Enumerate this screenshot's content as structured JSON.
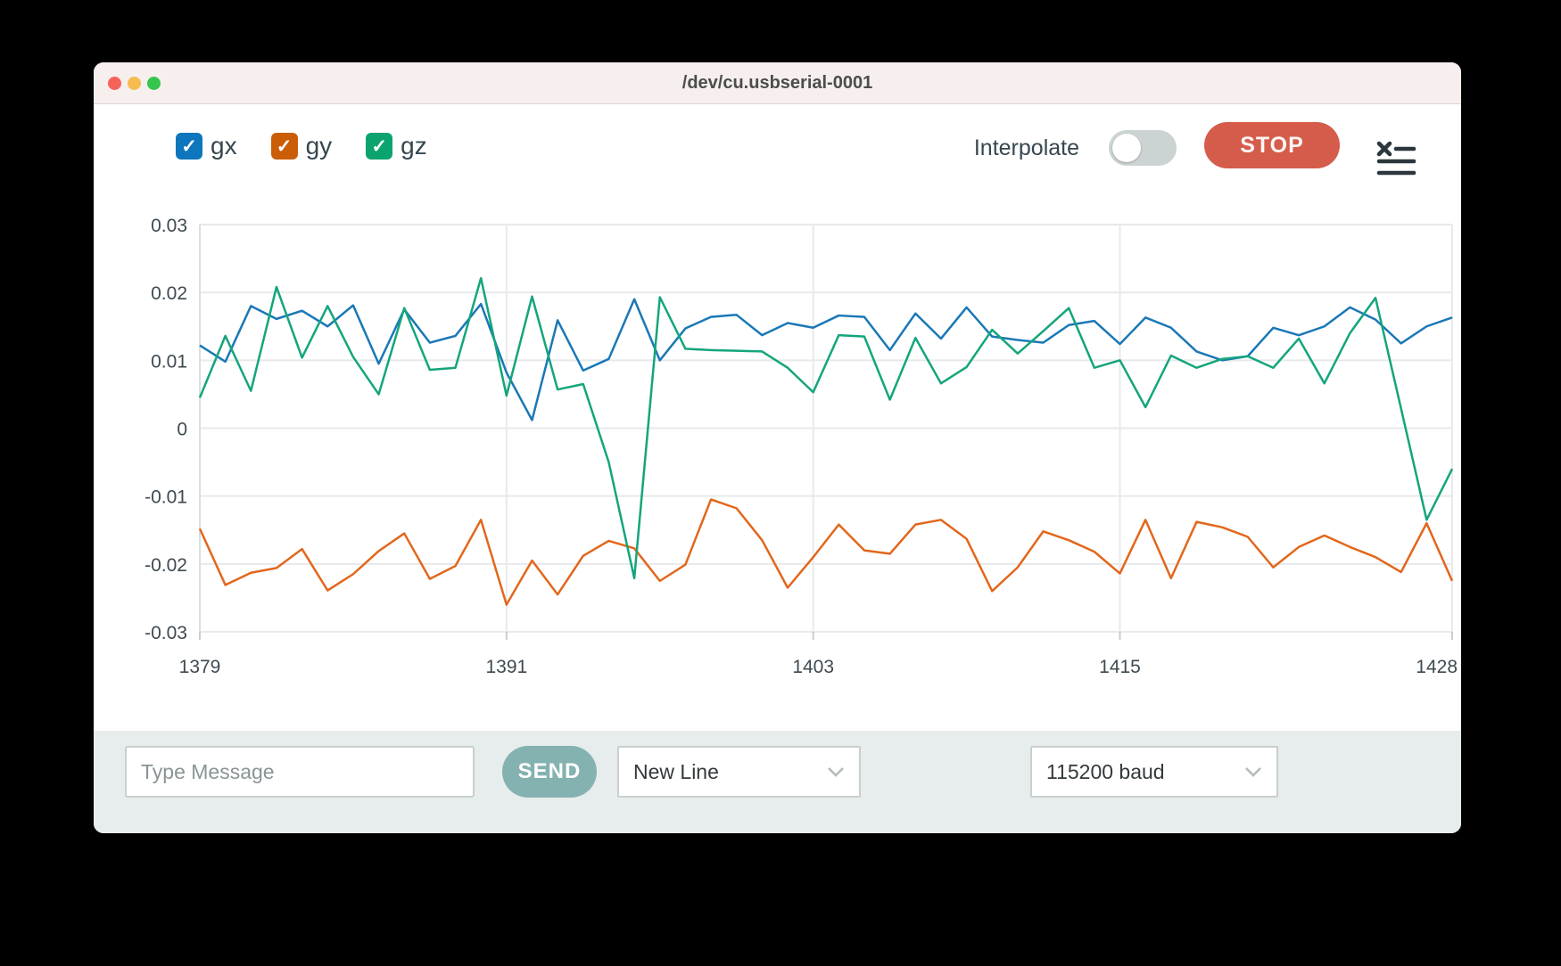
{
  "window": {
    "title": "/dev/cu.usbserial-0001"
  },
  "titlebar_buttons": [
    "close",
    "minimize",
    "zoom"
  ],
  "legend": [
    {
      "label": "gx",
      "color": "#0e76bc",
      "checked": true
    },
    {
      "label": "gy",
      "color": "#cc5d07",
      "checked": true
    },
    {
      "label": "gz",
      "color": "#0ca46e",
      "checked": true
    }
  ],
  "controls": {
    "interpolate_label": "Interpolate",
    "interpolate_on": false,
    "stop_label": "STOP",
    "list_icon": "clear-list-icon"
  },
  "chart_data": {
    "type": "line",
    "title": "",
    "xlabel": "",
    "ylabel": "",
    "xlim": [
      1379,
      1428
    ],
    "ylim": [
      -0.03,
      0.03
    ],
    "xticks": [
      1379,
      1391,
      1403,
      1415,
      1428
    ],
    "yticks": [
      0.03,
      0.02,
      0.01,
      0,
      -0.01,
      -0.02,
      -0.03
    ],
    "grid": true,
    "x": [
      1379,
      1380,
      1381,
      1382,
      1383,
      1384,
      1385,
      1386,
      1387,
      1388,
      1389,
      1390,
      1391,
      1392,
      1393,
      1394,
      1395,
      1396,
      1397,
      1398,
      1399,
      1400,
      1401,
      1402,
      1403,
      1404,
      1405,
      1406,
      1407,
      1408,
      1409,
      1410,
      1411,
      1412,
      1413,
      1414,
      1415,
      1416,
      1417,
      1418,
      1419,
      1420,
      1421,
      1422,
      1423,
      1424,
      1425,
      1426,
      1427,
      1428
    ],
    "series": [
      {
        "name": "gx",
        "color": "#1a78b6",
        "values": [
          0.0122,
          0.0098,
          0.018,
          0.0161,
          0.0173,
          0.015,
          0.0181,
          0.0095,
          0.0175,
          0.0126,
          0.0136,
          0.0183,
          0.0082,
          0.0012,
          0.0159,
          0.0085,
          0.0102,
          0.019,
          0.01,
          0.0147,
          0.0164,
          0.0167,
          0.0137,
          0.0155,
          0.0148,
          0.0166,
          0.0164,
          0.0115,
          0.0169,
          0.0132,
          0.0178,
          0.0135,
          0.013,
          0.0126,
          0.0152,
          0.0158,
          0.0124,
          0.0163,
          0.0148,
          0.0113,
          0.01,
          0.0106,
          0.0148,
          0.0137,
          0.015,
          0.0178,
          0.016,
          0.0125,
          0.015,
          0.0163
        ]
      },
      {
        "name": "gy",
        "color": "#e2671c",
        "values": [
          -0.0148,
          -0.0231,
          -0.0213,
          -0.0206,
          -0.0178,
          -0.0239,
          -0.0215,
          -0.0181,
          -0.0155,
          -0.0222,
          -0.0203,
          -0.0135,
          -0.026,
          -0.0195,
          -0.0245,
          -0.0188,
          -0.0166,
          -0.0177,
          -0.0225,
          -0.0201,
          -0.0105,
          -0.0118,
          -0.0165,
          -0.0235,
          -0.019,
          -0.0142,
          -0.018,
          -0.0185,
          -0.0142,
          -0.0135,
          -0.0163,
          -0.024,
          -0.0205,
          -0.0152,
          -0.0165,
          -0.0182,
          -0.0214,
          -0.0135,
          -0.0221,
          -0.0138,
          -0.0146,
          -0.016,
          -0.0205,
          -0.0175,
          -0.0158,
          -0.0175,
          -0.019,
          -0.0212,
          -0.014,
          -0.0225
        ]
      },
      {
        "name": "gz",
        "color": "#14a57c",
        "values": [
          0.0045,
          0.0136,
          0.0055,
          0.0208,
          0.0104,
          0.018,
          0.0105,
          0.005,
          0.0177,
          0.0086,
          0.0089,
          0.0221,
          0.0048,
          0.0194,
          0.0057,
          0.0065,
          -0.005,
          -0.0221,
          0.0193,
          0.0117,
          0.0115,
          0.0114,
          0.0113,
          0.0089,
          0.0053,
          0.0137,
          0.0135,
          0.0042,
          0.0133,
          0.0066,
          0.009,
          0.0145,
          0.011,
          0.0143,
          0.0177,
          0.0089,
          0.01,
          0.0031,
          0.0107,
          0.0089,
          0.0102,
          0.0106,
          0.0089,
          0.0132,
          0.0066,
          0.014,
          0.0192,
          0.0029,
          -0.0135,
          -0.006
        ]
      }
    ]
  },
  "bottom_bar": {
    "message_placeholder": "Type Message",
    "message_value": "",
    "send_label": "SEND",
    "line_ending": "New Line",
    "baud": "115200 baud"
  },
  "colors": {
    "accent_stop": "#d55c4b",
    "accent_send": "#84b2b0",
    "titlebar_bg": "#f6efee",
    "bottombar_bg": "#e7edec",
    "grid": "#e7e9eb",
    "tick_text": "#3e4a51"
  }
}
